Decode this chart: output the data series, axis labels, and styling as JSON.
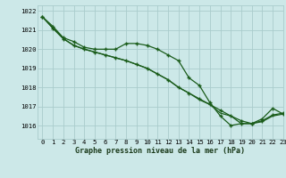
{
  "title": "Graphe pression niveau de la mer (hPa)",
  "background_color": "#cce8e8",
  "plot_bg_color": "#cce8e8",
  "grid_color": "#aacccc",
  "line_color": "#1a5c1a",
  "marker_color": "#1a5c1a",
  "xlim": [
    -0.5,
    23
  ],
  "ylim": [
    1015.3,
    1022.3
  ],
  "xticks": [
    0,
    1,
    2,
    3,
    4,
    5,
    6,
    7,
    8,
    9,
    10,
    11,
    12,
    13,
    14,
    15,
    16,
    17,
    18,
    19,
    20,
    21,
    22,
    23
  ],
  "yticks": [
    1016,
    1017,
    1018,
    1019,
    1020,
    1021,
    1022
  ],
  "s1": [
    1021.7,
    1021.2,
    1020.6,
    1020.4,
    1020.1,
    1020.0,
    1020.0,
    1020.0,
    1020.3,
    1020.3,
    1020.2,
    1020.0,
    1019.7,
    1019.4,
    1018.5,
    1018.1,
    1017.2,
    1016.5,
    1016.0,
    1016.1,
    1016.1,
    1016.35,
    1016.9,
    1016.6
  ],
  "s2": [
    1021.7,
    1021.1,
    1020.55,
    1020.2,
    1020.0,
    1019.85,
    1019.7,
    1019.55,
    1019.4,
    1019.2,
    1019.0,
    1018.7,
    1018.4,
    1018.0,
    1017.7,
    1017.4,
    1017.1,
    1016.8,
    1016.5,
    1016.25,
    1016.1,
    1016.25,
    1016.55,
    1016.65
  ],
  "s3": [
    1021.7,
    1021.1,
    1020.55,
    1020.2,
    1020.0,
    1019.85,
    1019.7,
    1019.55,
    1019.4,
    1019.2,
    1019.0,
    1018.7,
    1018.4,
    1018.0,
    1017.7,
    1017.35,
    1017.1,
    1016.65,
    1016.5,
    1016.1,
    1016.1,
    1016.2,
    1016.5,
    1016.6
  ],
  "title_fontsize": 6.0,
  "tick_fontsize": 5.2
}
